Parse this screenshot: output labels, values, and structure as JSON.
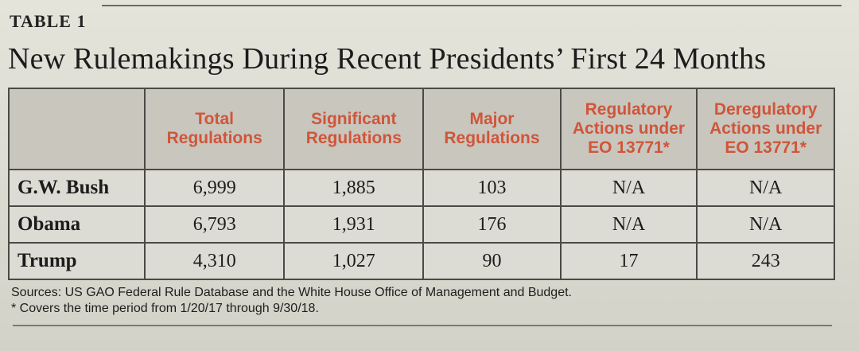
{
  "label": "TABLE 1",
  "title": "New Rulemakings During Recent Presidents’ First 24 Months",
  "table": {
    "headers": [
      "",
      "Total Regulations",
      "Significant Regulations",
      "Major Regulations",
      "Regulatory Actions under EO 13771*",
      "Deregulatory Actions under EO 13771*"
    ],
    "rows": [
      [
        "G.W. Bush",
        "6,999",
        "1,885",
        "103",
        "N/A",
        "N/A"
      ],
      [
        "Obama",
        "6,793",
        "1,931",
        "176",
        "N/A",
        "N/A"
      ],
      [
        "Trump",
        "4,310",
        "1,027",
        "90",
        "17",
        "243"
      ]
    ]
  },
  "notes": {
    "sources": "Sources: US GAO Federal Rule Database and the White House Office of Management and Budget.",
    "footnote": "* Covers the time period from 1/20/17 through 9/30/18."
  },
  "colors": {
    "header_text": "#d0553a",
    "border": "#4a4a46",
    "background": "#dcdcd2"
  }
}
